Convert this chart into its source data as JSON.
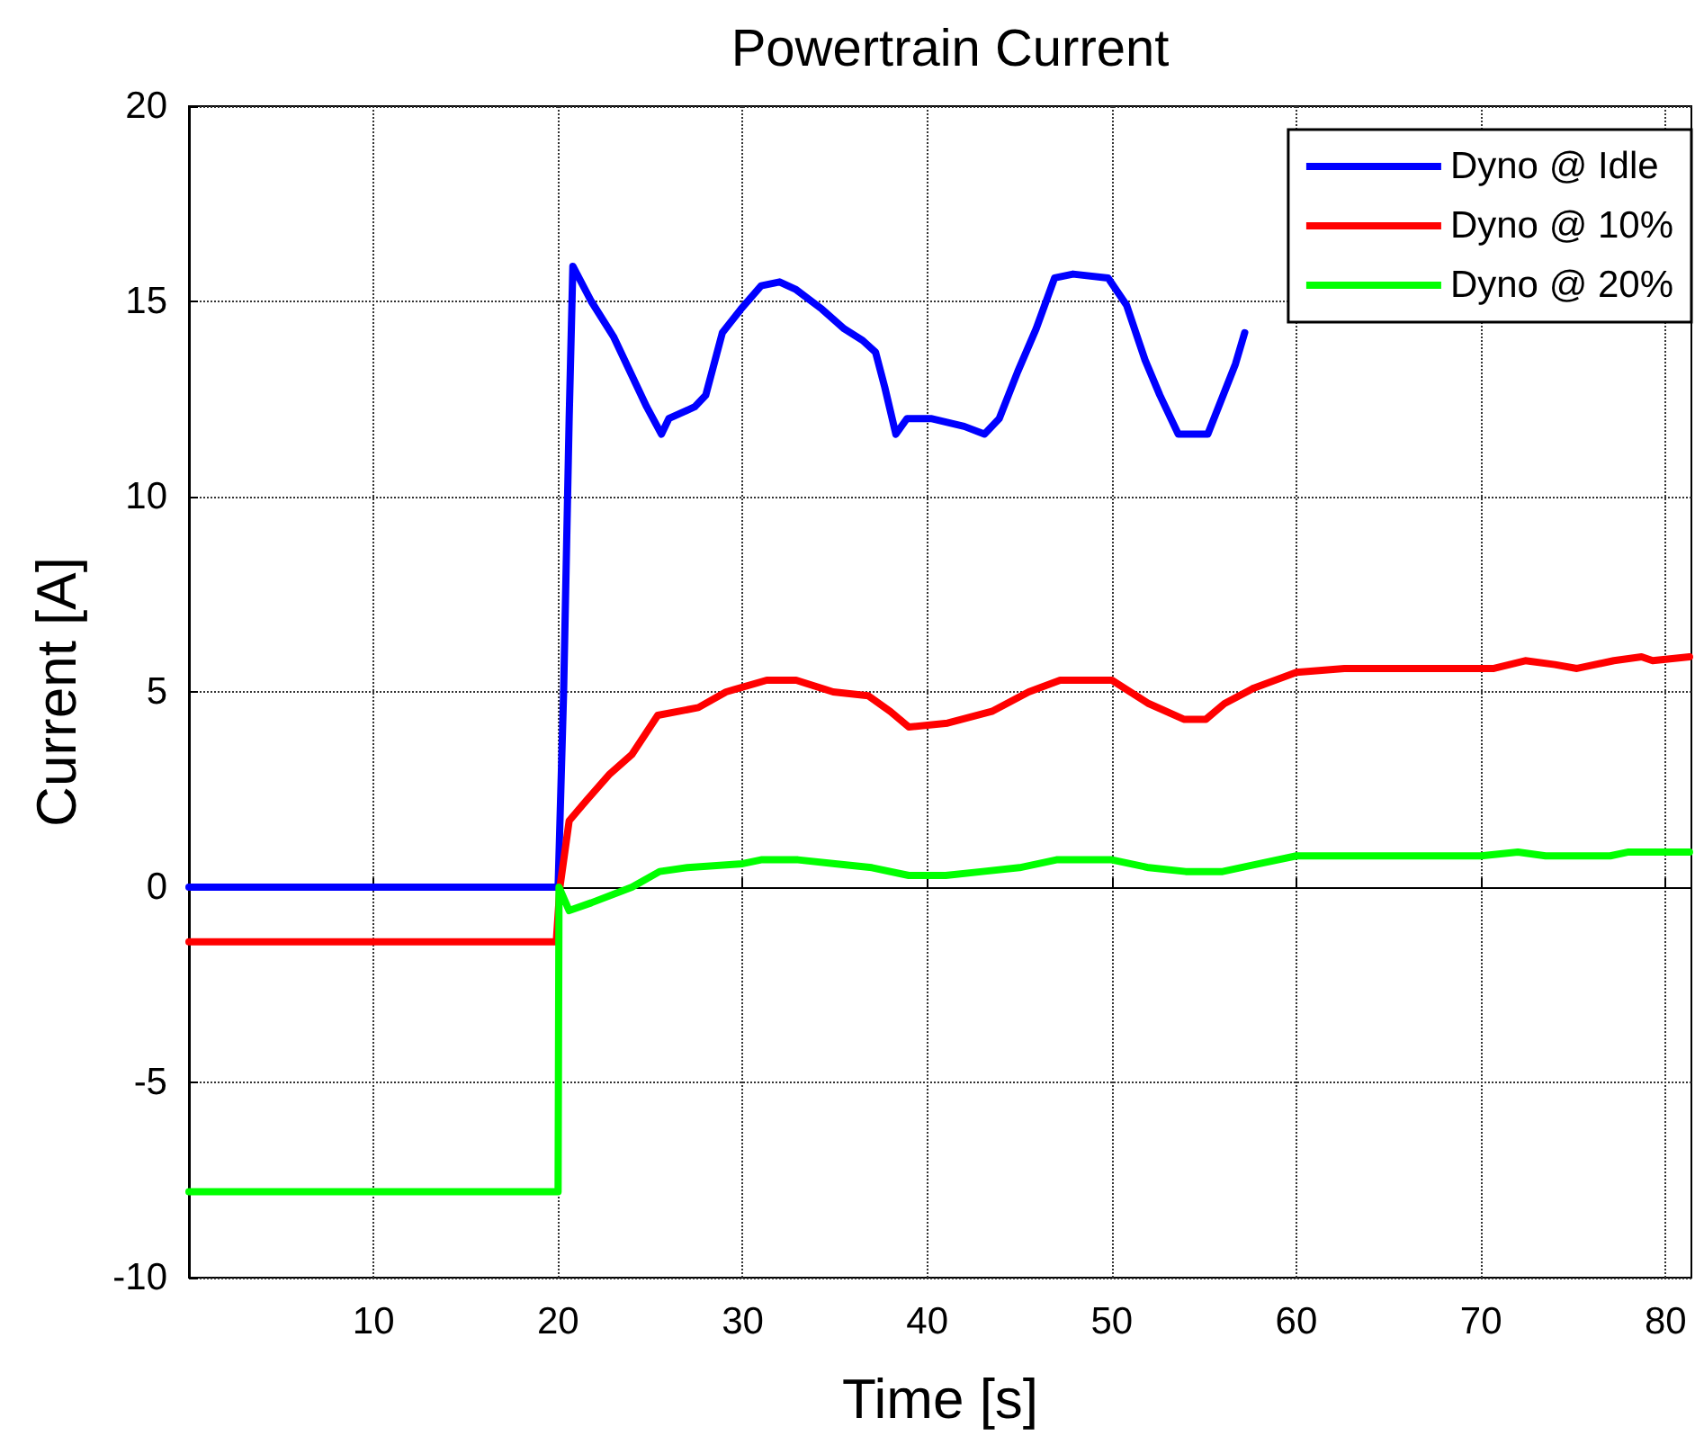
{
  "chart_data": {
    "type": "line",
    "title": "Powertrain Current",
    "xlabel": "Time [s]",
    "ylabel": "Current [A]",
    "xlim": [
      0,
      81.4
    ],
    "xticks": [
      10,
      20,
      30,
      40,
      50,
      60,
      70,
      80
    ],
    "ylim": [
      -10,
      20
    ],
    "yticks": [
      -10,
      -5,
      0,
      5,
      10,
      15,
      20
    ],
    "grid": true,
    "legend": "top right",
    "marker": "none",
    "line_style": "solid",
    "series": [
      {
        "name": "Dyno @ Idle",
        "color": "#0000ff",
        "x": [
          0,
          20,
          20.3,
          20.6,
          20.8,
          21.8,
          23.0,
          24.8,
          25.6,
          26.0,
          27.4,
          28.0,
          28.9,
          29.9,
          31.0,
          32.0,
          32.9,
          34.3,
          35.5,
          36.5,
          37.2,
          37.7,
          38.3,
          38.9,
          40.2,
          42.0,
          43.1,
          43.9,
          44.9,
          45.9,
          46.9,
          47.9,
          49.8,
          50.8,
          51.8,
          52.6,
          53.6,
          55.2,
          55.7,
          56.7,
          57.2
        ],
        "values": [
          0,
          0,
          5,
          12,
          15.9,
          15.0,
          14.1,
          12.3,
          11.6,
          12.0,
          12.3,
          12.6,
          14.2,
          14.8,
          15.4,
          15.5,
          15.3,
          14.8,
          14.3,
          14.0,
          13.7,
          12.8,
          11.6,
          12.0,
          12.0,
          11.8,
          11.6,
          12.0,
          13.2,
          14.3,
          15.6,
          15.7,
          15.6,
          14.9,
          13.5,
          12.6,
          11.6,
          11.6,
          12.2,
          13.4,
          14.2
        ]
      },
      {
        "name": "Dyno @ 10%",
        "color": "#ff0000",
        "x": [
          0,
          19.9,
          20.1,
          20.6,
          21.5,
          22.8,
          24.0,
          25.4,
          27.6,
          29.1,
          31.3,
          32.9,
          34.9,
          36.8,
          38.0,
          39.0,
          41.1,
          43.5,
          45.5,
          47.2,
          50.0,
          52.0,
          53.9,
          55.1,
          56.1,
          57.7,
          60.0,
          62.6,
          70.7,
          72.4,
          74.0,
          75.2,
          77.2,
          78.7,
          79.3,
          81.3
        ],
        "values": [
          -1.4,
          -1.4,
          0,
          1.7,
          2.2,
          2.9,
          3.4,
          4.4,
          4.6,
          5.0,
          5.3,
          5.3,
          5.0,
          4.9,
          4.5,
          4.1,
          4.2,
          4.5,
          5.0,
          5.3,
          5.3,
          4.7,
          4.3,
          4.3,
          4.7,
          5.1,
          5.5,
          5.6,
          5.6,
          5.8,
          5.7,
          5.6,
          5.8,
          5.9,
          5.8,
          5.9
        ]
      },
      {
        "name": "Dyno @ 20%",
        "color": "#00ff00",
        "x": [
          0,
          20.0,
          20.05,
          20.6,
          21.8,
          24,
          25.5,
          27,
          30,
          31,
          33,
          35,
          37,
          39,
          41,
          43,
          45,
          47,
          50,
          52,
          54,
          56,
          58,
          60,
          70,
          72,
          73.5,
          77,
          78,
          81.3
        ],
        "values": [
          -7.8,
          -7.8,
          0.0,
          -0.6,
          -0.4,
          0,
          0.4,
          0.5,
          0.6,
          0.7,
          0.7,
          0.6,
          0.5,
          0.3,
          0.3,
          0.4,
          0.5,
          0.7,
          0.7,
          0.5,
          0.4,
          0.4,
          0.6,
          0.8,
          0.8,
          0.9,
          0.8,
          0.8,
          0.9,
          0.9
        ]
      }
    ]
  }
}
